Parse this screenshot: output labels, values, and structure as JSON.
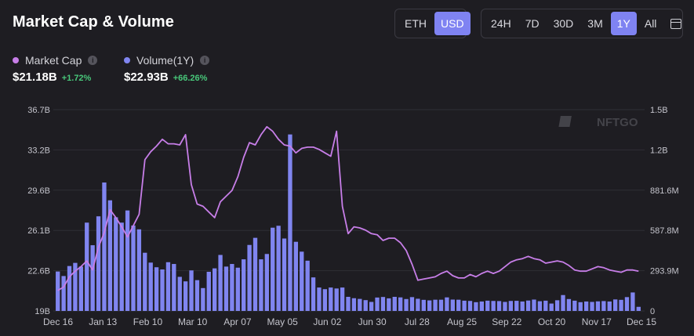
{
  "header": {
    "title": "Market Cap & Volume"
  },
  "currency_toggle": {
    "options": [
      "ETH",
      "USD"
    ],
    "selected": "USD"
  },
  "range_toggle": {
    "options": [
      "24H",
      "7D",
      "30D",
      "3M",
      "1Y",
      "All"
    ],
    "selected": "1Y",
    "calendar_icon": "calendar-icon"
  },
  "legend": {
    "market_cap": {
      "label": "Market Cap",
      "value": "$21.18B",
      "change": "+1.72%",
      "color": "#c77ee8"
    },
    "volume": {
      "label": "Volume(1Y)",
      "value": "$22.93B",
      "change": "+66.26%",
      "color": "#8085f0"
    }
  },
  "watermark": "NFTGO",
  "chart_data": {
    "type": "bar+line",
    "x_tick_labels": [
      "Dec 16",
      "Jan 13",
      "Feb 10",
      "Mar 10",
      "Apr 07",
      "May 05",
      "Jun 02",
      "Jun 30",
      "Jul 28",
      "Aug 25",
      "Sep 22",
      "Oct 20",
      "Nov 17",
      "Dec 15"
    ],
    "left_axis": {
      "label": "Market Cap",
      "ticks": [
        "19B",
        "22.6B",
        "26.1B",
        "29.6B",
        "33.2B",
        "36.7B"
      ],
      "ylim": [
        19,
        36.7
      ],
      "unit": "B"
    },
    "right_axis": {
      "label": "Volume",
      "ticks": [
        "0",
        "293.9M",
        "587.8M",
        "881.6M",
        "1.2B",
        "1.5B"
      ],
      "ylim": [
        0,
        1470
      ],
      "unit": "M"
    },
    "grid": true,
    "series": [
      {
        "name": "Volume(1Y)",
        "kind": "bar",
        "axis": "right",
        "values": [
          288,
          255,
          328,
          351,
          324,
          645,
          480,
          691,
          938,
          808,
          684,
          645,
          734,
          624,
          596,
          425,
          353,
          319,
          303,
          356,
          343,
          249,
          216,
          296,
          225,
          167,
          286,
          311,
          409,
          324,
          343,
          316,
          377,
          482,
          534,
          377,
          416,
          608,
          622,
          529,
          1289,
          505,
          433,
          367,
          245,
          171,
          159,
          171,
          164,
          171,
          103,
          93,
          88,
          79,
          66,
          98,
          102,
          92,
          103,
          99,
          87,
          101,
          89,
          81,
          77,
          82,
          82,
          99,
          83,
          82,
          75,
          73,
          64,
          69,
          75,
          73,
          72,
          66,
          73,
          74,
          69,
          76,
          83,
          71,
          75,
          54,
          78,
          116,
          87,
          75,
          64,
          69,
          66,
          70,
          72,
          69,
          84,
          81,
          101,
          135,
          30
        ]
      },
      {
        "name": "Market Cap",
        "kind": "line",
        "axis": "left",
        "values": [
          20.8,
          21.1,
          22.0,
          22.5,
          22.9,
          23.4,
          22.6,
          24.6,
          25.9,
          27.9,
          27.2,
          26.4,
          25.5,
          26.5,
          27.5,
          32.3,
          33.0,
          33.5,
          34.1,
          33.7,
          33.7,
          33.6,
          34.5,
          30.1,
          28.4,
          28.2,
          27.7,
          27.2,
          28.6,
          29.1,
          29.6,
          30.8,
          32.5,
          33.8,
          33.6,
          34.5,
          35.2,
          34.8,
          34.1,
          33.6,
          33.5,
          32.9,
          33.3,
          33.4,
          33.4,
          33.2,
          32.9,
          32.6,
          34.8,
          28.2,
          25.8,
          26.4,
          26.3,
          26.1,
          25.8,
          25.7,
          25.2,
          25.4,
          25.4,
          25.0,
          24.3,
          23.1,
          21.7,
          21.8,
          21.9,
          22.0,
          22.3,
          22.5,
          22.1,
          21.9,
          21.9,
          22.2,
          22.0,
          22.3,
          22.5,
          22.3,
          22.5,
          22.9,
          23.3,
          23.5,
          23.6,
          23.8,
          23.6,
          23.5,
          23.2,
          23.3,
          23.4,
          23.3,
          23.0,
          22.6,
          22.5,
          22.5,
          22.7,
          22.9,
          22.8,
          22.6,
          22.5,
          22.4,
          22.6,
          22.6,
          22.5
        ]
      }
    ]
  }
}
